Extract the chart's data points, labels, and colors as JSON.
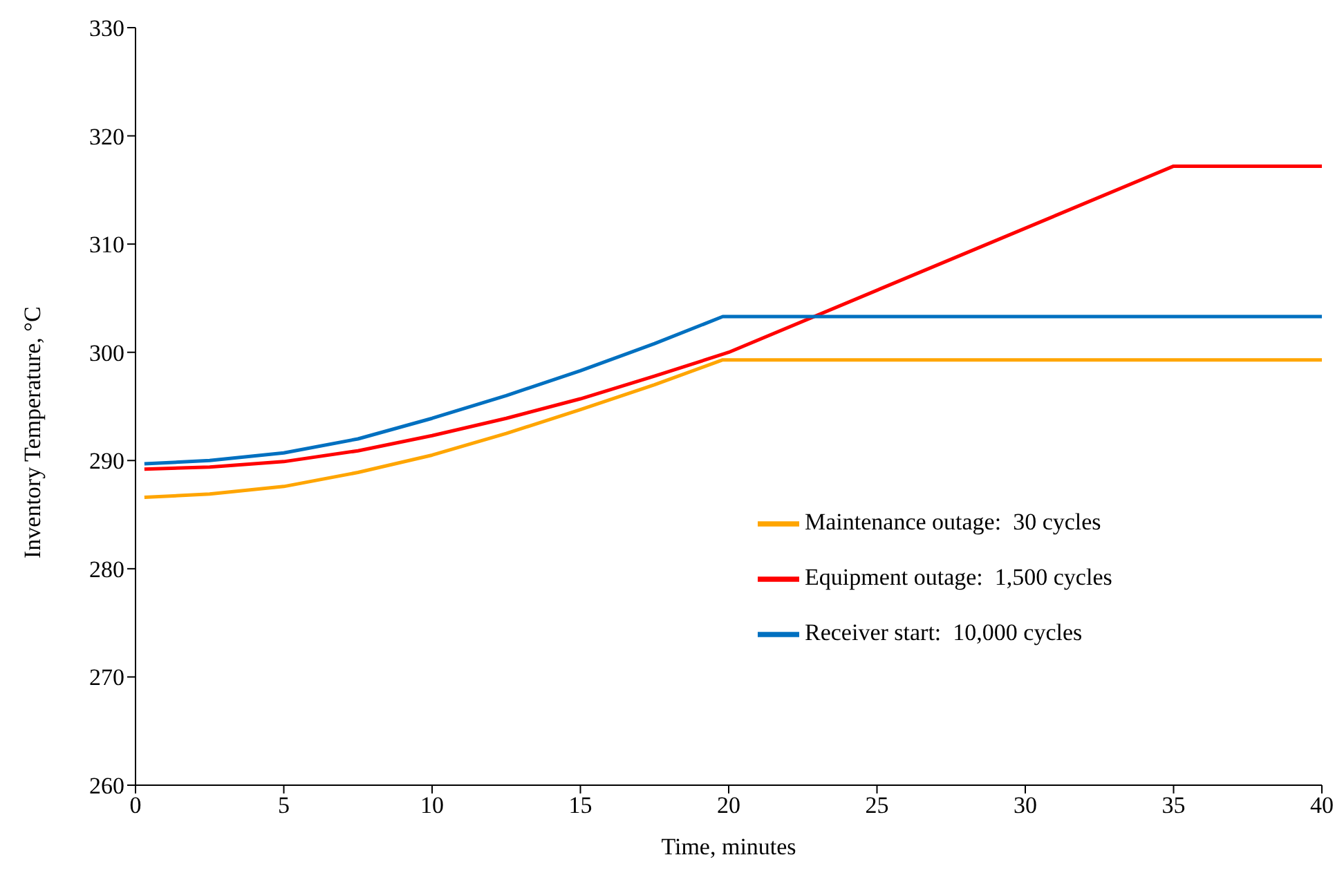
{
  "chart_data": {
    "type": "line",
    "xlabel": "Time,  minutes",
    "ylabel": "Inventory Temperature, °C",
    "xlim": [
      0,
      40
    ],
    "ylim": [
      260,
      330
    ],
    "xticks": [
      0,
      5,
      10,
      15,
      20,
      25,
      30,
      35,
      40
    ],
    "yticks": [
      260,
      270,
      280,
      290,
      300,
      310,
      320,
      330
    ],
    "grid": false,
    "legend": "right",
    "marker": "none",
    "line_style": "solid",
    "series": [
      {
        "name": "Maintenance outage:  30 cycles",
        "color": "#ffa500",
        "x": [
          0.3,
          2.5,
          5,
          7.5,
          10,
          12.5,
          15,
          17.5,
          19.8,
          40
        ],
        "values": [
          286.6,
          286.9,
          287.6,
          288.9,
          290.5,
          292.5,
          294.7,
          297.0,
          299.3,
          299.3
        ]
      },
      {
        "name": "Equipment outage:  1,500 cycles",
        "color": "#ff0000",
        "x": [
          0.3,
          2.5,
          5,
          7.5,
          10,
          12.5,
          15,
          17.5,
          20,
          35,
          40
        ],
        "values": [
          289.2,
          289.4,
          289.9,
          290.9,
          292.3,
          293.9,
          295.7,
          297.8,
          300.0,
          317.2,
          317.2
        ]
      },
      {
        "name": "Receiver start:  10,000 cycles",
        "color": "#0070c0",
        "x": [
          0.3,
          2.5,
          5,
          7.5,
          10,
          12.5,
          15,
          17.5,
          19.8,
          40
        ],
        "values": [
          289.7,
          290.0,
          290.7,
          292.0,
          293.9,
          296.0,
          298.3,
          300.8,
          303.3,
          303.3
        ]
      }
    ]
  }
}
